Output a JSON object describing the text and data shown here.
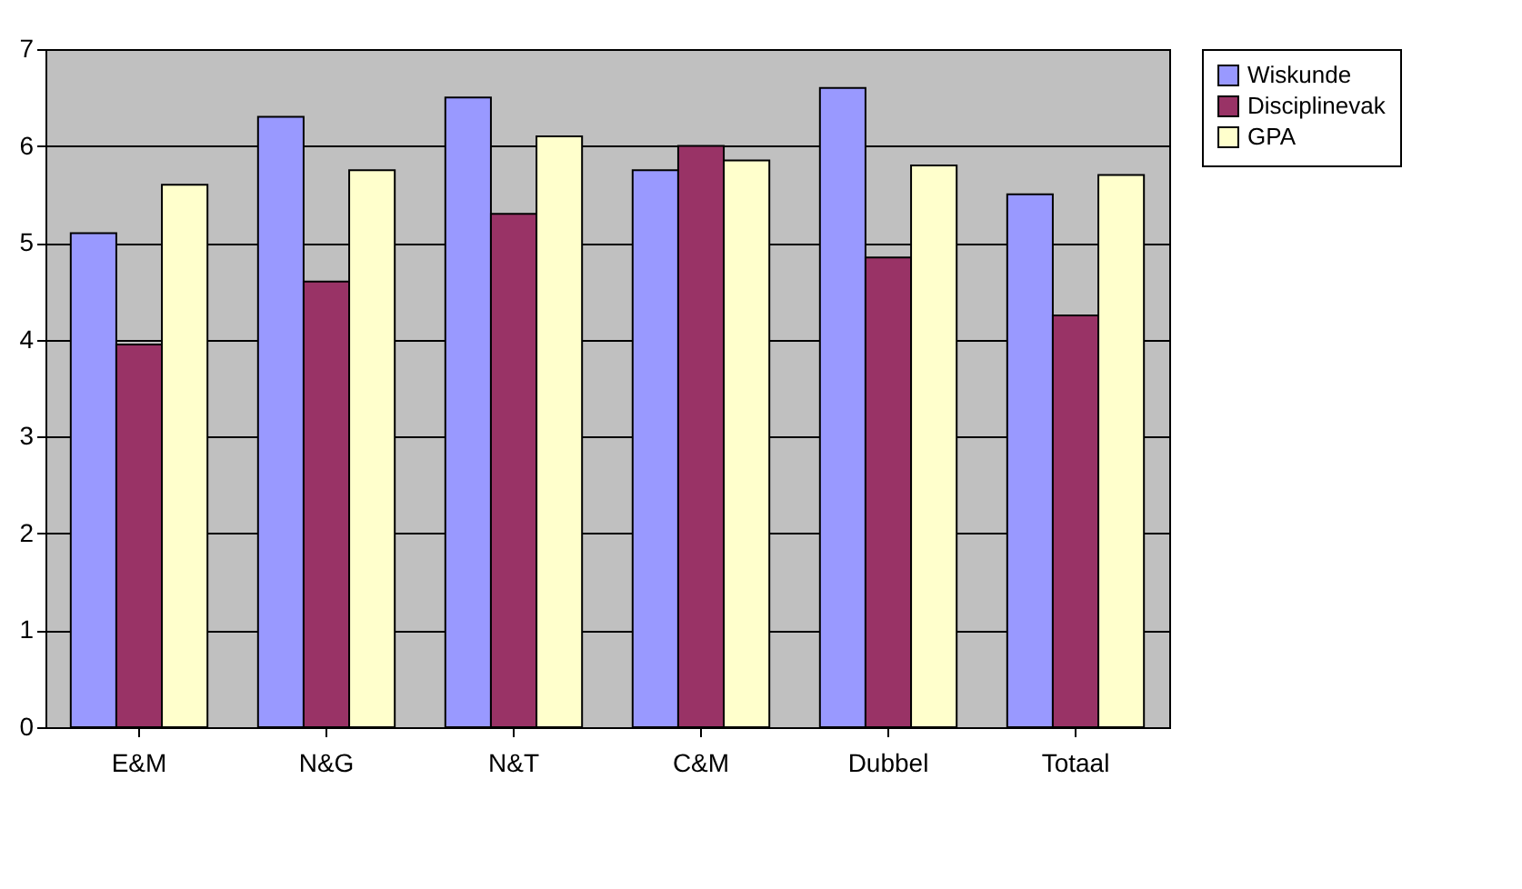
{
  "chart_data": {
    "type": "bar",
    "categories": [
      "E&M",
      "N&G",
      "N&T",
      "C&M",
      "Dubbel",
      "Totaal"
    ],
    "series": [
      {
        "name": "Wiskunde",
        "color": "#9999ff",
        "values": [
          5.1,
          6.3,
          6.5,
          5.75,
          6.6,
          5.5
        ]
      },
      {
        "name": "Disciplinevak",
        "color": "#993366",
        "values": [
          3.95,
          4.6,
          5.3,
          6.0,
          4.85,
          4.25
        ]
      },
      {
        "name": "GPA",
        "color": "#ffffcc",
        "values": [
          5.6,
          5.75,
          6.1,
          5.85,
          5.8,
          5.7
        ]
      }
    ],
    "ylim": [
      0,
      7
    ],
    "yticks": [
      0,
      1,
      2,
      3,
      4,
      5,
      6,
      7
    ],
    "grid": "y",
    "legend": "right"
  }
}
